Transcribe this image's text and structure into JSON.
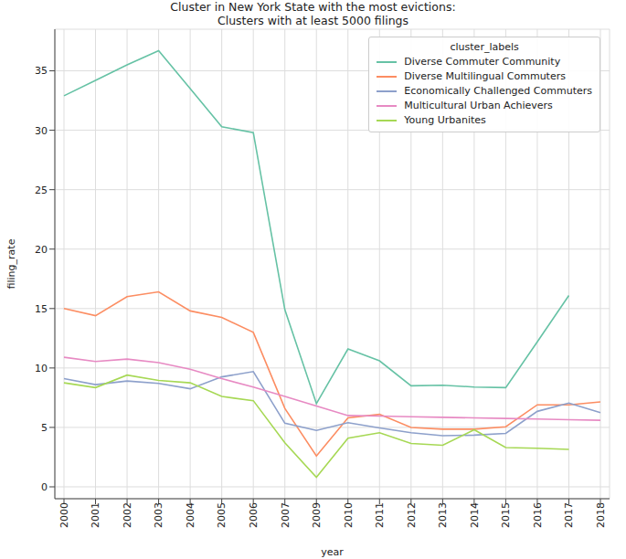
{
  "chart_data": {
    "type": "line",
    "title": "Cluster in New York State with the most evictions:",
    "subtitle": "Clusters with at least 5000 filings",
    "x_label": "year",
    "y_label": "filing_rate",
    "legend_title": "cluster_labels",
    "categories": [
      "2000",
      "2001",
      "2002",
      "2003",
      "2004",
      "2005",
      "2006",
      "2007",
      "2009",
      "2010",
      "2011",
      "2012",
      "2013",
      "2014",
      "2015",
      "2016",
      "2017",
      "2018"
    ],
    "series": [
      {
        "name": "Diverse Commuter Community",
        "color": "#66c2a5",
        "values": [
          32.9,
          34.2,
          35.5,
          36.7,
          33.5,
          30.3,
          29.8,
          14.9,
          7.0,
          11.6,
          10.6,
          8.5,
          8.55,
          8.4,
          8.35,
          12.2,
          16.1,
          null
        ]
      },
      {
        "name": "Diverse Multilingual Commuters",
        "color": "#fc8d62",
        "values": [
          15.0,
          14.4,
          16.0,
          16.4,
          14.8,
          14.25,
          13.0,
          6.6,
          2.6,
          5.8,
          6.1,
          5.0,
          4.85,
          4.85,
          5.05,
          6.9,
          6.9,
          7.15
        ]
      },
      {
        "name": "Economically Challenged Commuters",
        "color": "#8da0cb",
        "values": [
          9.1,
          8.6,
          8.9,
          8.7,
          8.25,
          9.25,
          9.7,
          5.35,
          4.75,
          5.4,
          4.95,
          4.55,
          4.3,
          4.35,
          4.5,
          6.35,
          7.05,
          6.25
        ]
      },
      {
        "name": "Multicultural Urban Achievers",
        "color": "#e78ac3",
        "values": [
          10.9,
          10.55,
          10.75,
          10.45,
          9.9,
          9.1,
          8.4,
          7.6,
          6.8,
          6.0,
          5.95,
          5.9,
          5.85,
          5.8,
          5.75,
          5.7,
          5.65,
          5.6
        ]
      },
      {
        "name": "Young Urbanites",
        "color": "#a6d854",
        "values": [
          8.75,
          8.35,
          9.4,
          8.95,
          8.75,
          7.6,
          7.25,
          3.7,
          0.8,
          4.1,
          4.55,
          3.65,
          3.5,
          4.8,
          3.3,
          3.25,
          3.15,
          null
        ]
      }
    ],
    "ylim": [
      -1,
      38.5
    ],
    "yticks": [
      0,
      5,
      10,
      15,
      20,
      25,
      30,
      35
    ],
    "grid": true,
    "legend": "upper right"
  }
}
